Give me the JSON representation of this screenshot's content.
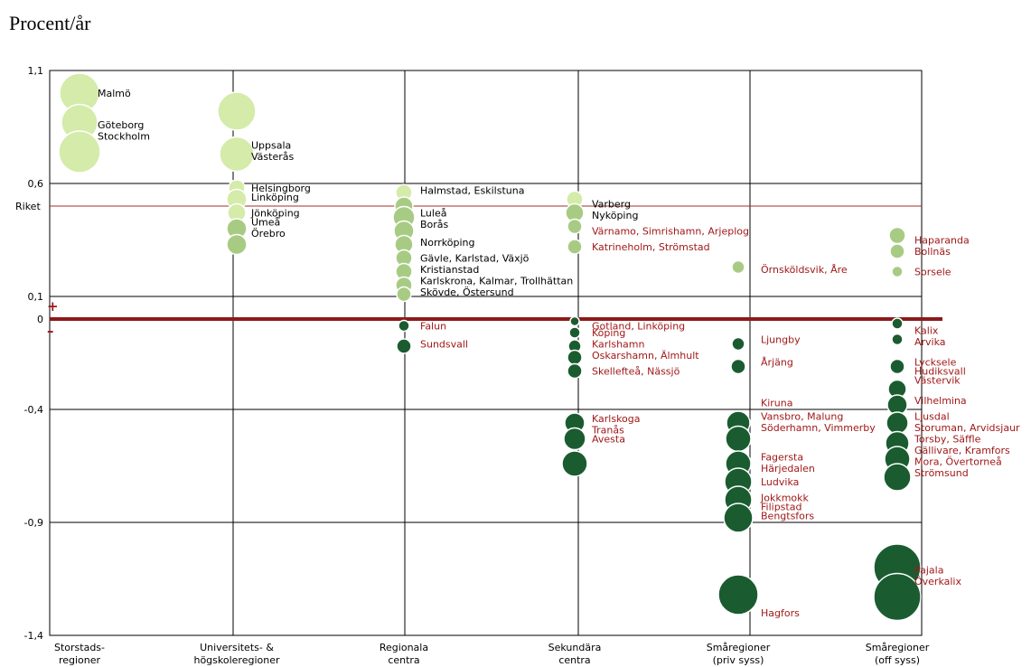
{
  "chart_data": {
    "type": "scatter",
    "ylabel": "Procent/år",
    "ylim": [
      -1.4,
      1.1
    ],
    "ytick_labels": [
      {
        "label": "1,1",
        "value": 1.1
      },
      {
        "label": "0,6",
        "value": 0.6
      },
      {
        "label": "0,1",
        "value": 0.1
      },
      {
        "label": "0",
        "value": 0.0
      },
      {
        "label": "-0,4",
        "value": -0.4
      },
      {
        "label": "-0,9",
        "value": -0.9
      },
      {
        "label": "-1,4",
        "value": -1.4
      }
    ],
    "reference_line": {
      "label": "Riket",
      "value": 0.5,
      "color": "#a0302a"
    },
    "zero_line": {
      "value": 0.0,
      "color": "#8b1a1a",
      "plus": "+",
      "minus": "–"
    },
    "categories": [
      {
        "line1": "Storstads-",
        "line2": "regioner"
      },
      {
        "line1": "Universitets- &",
        "line2": "högskoleregioner"
      },
      {
        "line1": "Regionala",
        "line2": "centra"
      },
      {
        "line1": "Sekundära",
        "line2": "centra"
      },
      {
        "line1": "Småregioner",
        "line2": "(priv syss)"
      },
      {
        "line1": "Småregioner",
        "line2": "(off syss)"
      }
    ],
    "grid": true,
    "colors": {
      "light_green": "#d4ebaa",
      "mid_green": "#a8cb84",
      "dark_green": "#1a5c30",
      "positive_label": "#000000",
      "negative_label": "#a01818"
    },
    "points": [
      {
        "cat": 0,
        "y": 1.0,
        "size": 22,
        "shade": "light",
        "label": "Malmö"
      },
      {
        "cat": 0,
        "y": 0.87,
        "size": 20,
        "shade": "light",
        "label": ""
      },
      {
        "cat": 0,
        "y": 0.74,
        "size": 23,
        "shade": "light",
        "label": ""
      },
      {
        "cat": 1,
        "y": 0.92,
        "size": 21,
        "shade": "light",
        "label": ""
      },
      {
        "cat": 1,
        "y": 0.73,
        "size": 19,
        "shade": "light",
        "label": ""
      },
      {
        "cat": 1,
        "y": 0.58,
        "size": 9,
        "shade": "light",
        "label": ""
      },
      {
        "cat": 1,
        "y": 0.53,
        "size": 11,
        "shade": "light",
        "label": ""
      },
      {
        "cat": 1,
        "y": 0.47,
        "size": 10,
        "shade": "light",
        "label": ""
      },
      {
        "cat": 1,
        "y": 0.4,
        "size": 11,
        "shade": "mid",
        "label": ""
      },
      {
        "cat": 1,
        "y": 0.33,
        "size": 11,
        "shade": "mid",
        "label": ""
      },
      {
        "cat": 2,
        "y": 0.56,
        "size": 9,
        "shade": "light",
        "label": ""
      },
      {
        "cat": 2,
        "y": 0.5,
        "size": 10,
        "shade": "mid",
        "label": ""
      },
      {
        "cat": 2,
        "y": 0.45,
        "size": 12,
        "shade": "mid",
        "label": ""
      },
      {
        "cat": 2,
        "y": 0.39,
        "size": 11,
        "shade": "mid",
        "label": ""
      },
      {
        "cat": 2,
        "y": 0.33,
        "size": 10,
        "shade": "mid",
        "label": ""
      },
      {
        "cat": 2,
        "y": 0.27,
        "size": 9,
        "shade": "mid",
        "label": ""
      },
      {
        "cat": 2,
        "y": 0.21,
        "size": 9,
        "shade": "mid",
        "label": ""
      },
      {
        "cat": 2,
        "y": 0.15,
        "size": 9,
        "shade": "mid",
        "label": ""
      },
      {
        "cat": 2,
        "y": 0.11,
        "size": 8,
        "shade": "mid",
        "label": ""
      },
      {
        "cat": 2,
        "y": -0.03,
        "size": 6,
        "shade": "dark",
        "label": "Falun"
      },
      {
        "cat": 2,
        "y": -0.12,
        "size": 8,
        "shade": "dark",
        "label": "Sundsvall"
      },
      {
        "cat": 3,
        "y": 0.53,
        "size": 9,
        "shade": "light",
        "label": ""
      },
      {
        "cat": 3,
        "y": 0.47,
        "size": 10,
        "shade": "mid",
        "label": ""
      },
      {
        "cat": 3,
        "y": 0.41,
        "size": 8,
        "shade": "mid",
        "label": ""
      },
      {
        "cat": 3,
        "y": 0.32,
        "size": 8,
        "shade": "mid",
        "label": ""
      },
      {
        "cat": 3,
        "y": -0.01,
        "size": 5,
        "shade": "dark",
        "label": ""
      },
      {
        "cat": 3,
        "y": -0.06,
        "size": 6,
        "shade": "dark",
        "label": ""
      },
      {
        "cat": 3,
        "y": -0.12,
        "size": 7,
        "shade": "dark",
        "label": ""
      },
      {
        "cat": 3,
        "y": -0.17,
        "size": 8,
        "shade": "dark",
        "label": ""
      },
      {
        "cat": 3,
        "y": -0.23,
        "size": 8,
        "shade": "dark",
        "label": ""
      },
      {
        "cat": 3,
        "y": -0.46,
        "size": 11,
        "shade": "dark",
        "label": ""
      },
      {
        "cat": 3,
        "y": -0.53,
        "size": 12,
        "shade": "dark",
        "label": ""
      },
      {
        "cat": 3,
        "y": -0.64,
        "size": 14,
        "shade": "dark",
        "label": ""
      },
      {
        "cat": 4,
        "y": 0.23,
        "size": 7,
        "shade": "mid",
        "label": ""
      },
      {
        "cat": 4,
        "y": -0.11,
        "size": 7,
        "shade": "dark",
        "label": "Ljungby"
      },
      {
        "cat": 4,
        "y": -0.21,
        "size": 8,
        "shade": "dark",
        "label": "Årjäng"
      },
      {
        "cat": 4,
        "y": -0.46,
        "size": 13,
        "shade": "dark",
        "label": ""
      },
      {
        "cat": 4,
        "y": -0.53,
        "size": 14,
        "shade": "dark",
        "label": ""
      },
      {
        "cat": 4,
        "y": -0.64,
        "size": 14,
        "shade": "dark",
        "label": ""
      },
      {
        "cat": 4,
        "y": -0.72,
        "size": 15,
        "shade": "dark",
        "label": ""
      },
      {
        "cat": 4,
        "y": -0.8,
        "size": 15,
        "shade": "dark",
        "label": ""
      },
      {
        "cat": 4,
        "y": -0.88,
        "size": 16,
        "shade": "dark",
        "label": ""
      },
      {
        "cat": 4,
        "y": -1.22,
        "size": 22,
        "shade": "dark",
        "label": "Hagfors"
      },
      {
        "cat": 5,
        "y": 0.37,
        "size": 9,
        "shade": "mid",
        "label": ""
      },
      {
        "cat": 5,
        "y": 0.3,
        "size": 8,
        "shade": "mid",
        "label": ""
      },
      {
        "cat": 5,
        "y": 0.21,
        "size": 6,
        "shade": "mid",
        "label": "Sorsele"
      },
      {
        "cat": 5,
        "y": -0.02,
        "size": 6,
        "shade": "dark",
        "label": ""
      },
      {
        "cat": 5,
        "y": -0.09,
        "size": 6,
        "shade": "dark",
        "label": ""
      },
      {
        "cat": 5,
        "y": -0.21,
        "size": 8,
        "shade": "dark",
        "label": ""
      },
      {
        "cat": 5,
        "y": -0.31,
        "size": 10,
        "shade": "dark",
        "label": ""
      },
      {
        "cat": 5,
        "y": -0.38,
        "size": 11,
        "shade": "dark",
        "label": ""
      },
      {
        "cat": 5,
        "y": -0.46,
        "size": 12,
        "shade": "dark",
        "label": ""
      },
      {
        "cat": 5,
        "y": -0.55,
        "size": 13,
        "shade": "dark",
        "label": ""
      },
      {
        "cat": 5,
        "y": -0.62,
        "size": 14,
        "shade": "dark",
        "label": ""
      },
      {
        "cat": 5,
        "y": -0.7,
        "size": 15,
        "shade": "dark",
        "label": ""
      },
      {
        "cat": 5,
        "y": -1.1,
        "size": 26,
        "shade": "dark",
        "label": ""
      },
      {
        "cat": 5,
        "y": -1.23,
        "size": 26,
        "shade": "dark",
        "label": ""
      }
    ],
    "annotations": [
      {
        "cat": 0,
        "y": 1.0,
        "text": "Malmö",
        "color": "black"
      },
      {
        "cat": 0,
        "y": 0.86,
        "text": "Göteborg",
        "color": "black"
      },
      {
        "cat": 0,
        "y": 0.81,
        "text": "Stockholm",
        "color": "black"
      },
      {
        "cat": 1,
        "y": 0.77,
        "text": "Uppsala",
        "color": "black"
      },
      {
        "cat": 1,
        "y": 0.72,
        "text": "Västerås",
        "color": "black"
      },
      {
        "cat": 1,
        "y": 0.58,
        "text": "Helsingborg",
        "color": "black"
      },
      {
        "cat": 1,
        "y": 0.54,
        "text": "Linköping",
        "color": "black"
      },
      {
        "cat": 1,
        "y": 0.47,
        "text": "Jönköping",
        "color": "black"
      },
      {
        "cat": 1,
        "y": 0.43,
        "text": "Umeå",
        "color": "black"
      },
      {
        "cat": 1,
        "y": 0.38,
        "text": "Örebro",
        "color": "black"
      },
      {
        "cat": 2,
        "y": 0.57,
        "text": "Halmstad, Eskilstuna",
        "color": "black"
      },
      {
        "cat": 2,
        "y": 0.47,
        "text": "Luleå",
        "color": "black"
      },
      {
        "cat": 2,
        "y": 0.42,
        "text": "Borås",
        "color": "black"
      },
      {
        "cat": 2,
        "y": 0.34,
        "text": "Norrköping",
        "color": "black"
      },
      {
        "cat": 2,
        "y": 0.27,
        "text": "Gävle, Karlstad, Växjö",
        "color": "black"
      },
      {
        "cat": 2,
        "y": 0.22,
        "text": "Kristianstad",
        "color": "black"
      },
      {
        "cat": 2,
        "y": 0.17,
        "text": "Karlskrona, Kalmar, Trollhättan",
        "color": "black"
      },
      {
        "cat": 2,
        "y": 0.12,
        "text": "Skövde, Östersund",
        "color": "black"
      },
      {
        "cat": 2,
        "y": -0.03,
        "text": "Falun",
        "color": "red"
      },
      {
        "cat": 2,
        "y": -0.11,
        "text": "Sundsvall",
        "color": "red"
      },
      {
        "cat": 3,
        "y": 0.51,
        "text": "Varberg",
        "color": "black"
      },
      {
        "cat": 3,
        "y": 0.46,
        "text": "Nyköping",
        "color": "black"
      },
      {
        "cat": 3,
        "y": 0.39,
        "text": "Värnamo, Simrishamn, Arjeplog",
        "color": "red"
      },
      {
        "cat": 3,
        "y": 0.32,
        "text": "Katrineholm, Strömstad",
        "color": "red"
      },
      {
        "cat": 3,
        "y": -0.03,
        "text": "Gotland, Linköping",
        "color": "red"
      },
      {
        "cat": 3,
        "y": -0.06,
        "text": "Köping",
        "color": "red"
      },
      {
        "cat": 3,
        "y": -0.11,
        "text": "Karlshamn",
        "color": "red"
      },
      {
        "cat": 3,
        "y": -0.16,
        "text": "Oskarshamn, Älmhult",
        "color": "red"
      },
      {
        "cat": 3,
        "y": -0.23,
        "text": "Skellefteå, Nässjö",
        "color": "red"
      },
      {
        "cat": 3,
        "y": -0.44,
        "text": "Karlskoga",
        "color": "red"
      },
      {
        "cat": 3,
        "y": -0.49,
        "text": "Tranås",
        "color": "red"
      },
      {
        "cat": 3,
        "y": -0.53,
        "text": "Avesta",
        "color": "red"
      },
      {
        "cat": 4,
        "y": 0.22,
        "text": "Örnsköldsvik, Åre",
        "color": "red"
      },
      {
        "cat": 4,
        "y": -0.09,
        "text": "Ljungby",
        "color": "red"
      },
      {
        "cat": 4,
        "y": -0.19,
        "text": "Årjäng",
        "color": "red"
      },
      {
        "cat": 4,
        "y": -0.37,
        "text": "Kiruna",
        "color": "red"
      },
      {
        "cat": 4,
        "y": -0.43,
        "text": "Vansbro, Malung",
        "color": "red"
      },
      {
        "cat": 4,
        "y": -0.48,
        "text": "Söderhamn, Vimmerby",
        "color": "red"
      },
      {
        "cat": 4,
        "y": -0.61,
        "text": "Fagersta",
        "color": "red"
      },
      {
        "cat": 4,
        "y": -0.66,
        "text": "Härjedalen",
        "color": "red"
      },
      {
        "cat": 4,
        "y": -0.72,
        "text": "Ludvika",
        "color": "red"
      },
      {
        "cat": 4,
        "y": -0.79,
        "text": "Jokkmokk",
        "color": "red"
      },
      {
        "cat": 4,
        "y": -0.83,
        "text": "Filipstad",
        "color": "red"
      },
      {
        "cat": 4,
        "y": -0.87,
        "text": "Bengtsfors",
        "color": "red"
      },
      {
        "cat": 4,
        "y": -1.3,
        "text": "Hagfors",
        "color": "red"
      },
      {
        "cat": 5,
        "y": 0.35,
        "text": "Haparanda",
        "color": "red"
      },
      {
        "cat": 5,
        "y": 0.3,
        "text": "Bollnäs",
        "color": "red"
      },
      {
        "cat": 5,
        "y": 0.21,
        "text": "Sorsele",
        "color": "red"
      },
      {
        "cat": 5,
        "y": -0.05,
        "text": "Kalix",
        "color": "red"
      },
      {
        "cat": 5,
        "y": -0.1,
        "text": "Arvika",
        "color": "red"
      },
      {
        "cat": 5,
        "y": -0.19,
        "text": "Lycksele",
        "color": "red"
      },
      {
        "cat": 5,
        "y": -0.23,
        "text": "Hudiksvall",
        "color": "red"
      },
      {
        "cat": 5,
        "y": -0.27,
        "text": "Västervik",
        "color": "red"
      },
      {
        "cat": 5,
        "y": -0.36,
        "text": "Vilhelmina",
        "color": "red"
      },
      {
        "cat": 5,
        "y": -0.43,
        "text": "Ljusdal",
        "color": "red"
      },
      {
        "cat": 5,
        "y": -0.48,
        "text": "Storuman, Arvidsjaur",
        "color": "red"
      },
      {
        "cat": 5,
        "y": -0.53,
        "text": "Torsby, Säffle",
        "color": "red"
      },
      {
        "cat": 5,
        "y": -0.58,
        "text": "Gällivare, Kramfors",
        "color": "red"
      },
      {
        "cat": 5,
        "y": -0.63,
        "text": "Mora, Övertorneå",
        "color": "red"
      },
      {
        "cat": 5,
        "y": -0.68,
        "text": "Strömsund",
        "color": "red"
      },
      {
        "cat": 5,
        "y": -1.11,
        "text": "Pajala",
        "color": "red"
      },
      {
        "cat": 5,
        "y": -1.16,
        "text": "Överkalix",
        "color": "red"
      }
    ]
  }
}
